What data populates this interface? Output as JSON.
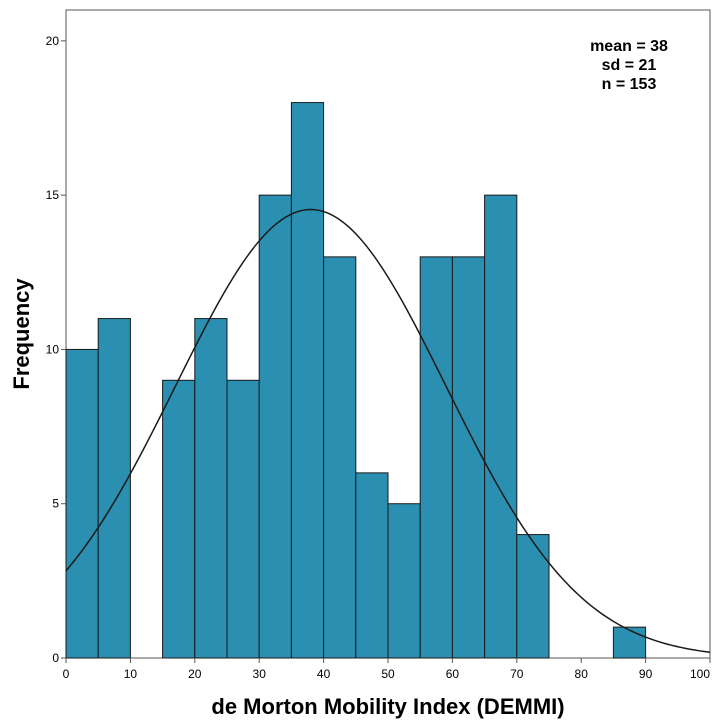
{
  "chart_data": {
    "type": "bar",
    "subtype": "histogram",
    "bin_width": 5,
    "bins": [
      {
        "start": 0,
        "end": 5,
        "count": 10
      },
      {
        "start": 5,
        "end": 10,
        "count": 11
      },
      {
        "start": 10,
        "end": 15,
        "count": 0
      },
      {
        "start": 15,
        "end": 20,
        "count": 9
      },
      {
        "start": 20,
        "end": 25,
        "count": 11
      },
      {
        "start": 25,
        "end": 30,
        "count": 9
      },
      {
        "start": 30,
        "end": 35,
        "count": 15
      },
      {
        "start": 35,
        "end": 40,
        "count": 18
      },
      {
        "start": 40,
        "end": 45,
        "count": 13
      },
      {
        "start": 45,
        "end": 50,
        "count": 6
      },
      {
        "start": 50,
        "end": 55,
        "count": 5
      },
      {
        "start": 55,
        "end": 60,
        "count": 13
      },
      {
        "start": 60,
        "end": 65,
        "count": 13
      },
      {
        "start": 65,
        "end": 70,
        "count": 15
      },
      {
        "start": 70,
        "end": 75,
        "count": 4
      },
      {
        "start": 75,
        "end": 80,
        "count": 0
      },
      {
        "start": 80,
        "end": 85,
        "count": 0
      },
      {
        "start": 85,
        "end": 90,
        "count": 1
      },
      {
        "start": 90,
        "end": 95,
        "count": 0
      },
      {
        "start": 95,
        "end": 100,
        "count": 0
      }
    ],
    "normal_curve": {
      "mean": 38,
      "sd": 21,
      "n": 153
    },
    "xlabel": "de Morton Mobility Index (DEMMI)",
    "ylabel": "Frequency",
    "xlim": [
      0,
      100
    ],
    "ylim": [
      0,
      21
    ],
    "xticks": [
      0,
      10,
      20,
      30,
      40,
      50,
      60,
      70,
      80,
      90,
      100
    ],
    "yticks": [
      0,
      5,
      10,
      15,
      20
    ],
    "stats_text": [
      "mean = 38",
      "sd = 21",
      "n = 153"
    ],
    "stats_placement": "top-right",
    "grid": false,
    "legend": "none",
    "colors": {
      "bar_fill": "#2a8fb0",
      "bar_stroke": "#1a1a1a",
      "curve": "#1a1a1a",
      "frame": "#555555"
    }
  }
}
